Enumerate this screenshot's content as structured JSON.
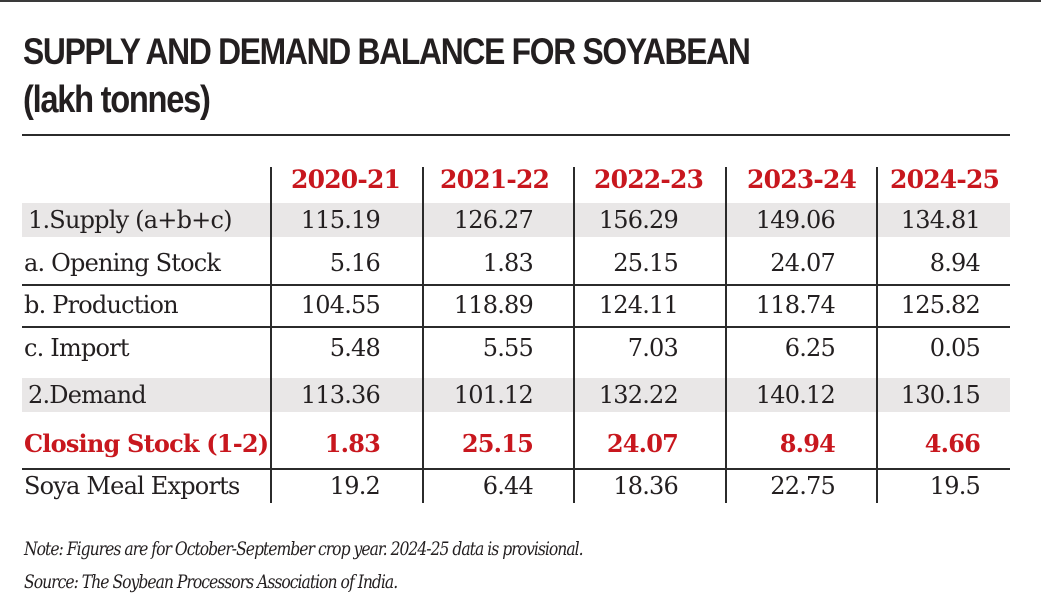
{
  "chart_data": {
    "type": "table",
    "title": "SUPPLY AND DEMAND BALANCE FOR SOYABEAN",
    "subtitle": "(lakh tonnes)",
    "columns": [
      "2020-21",
      "2021-22",
      "2022-23",
      "2023-24",
      "2024-25"
    ],
    "rows": [
      {
        "label": "1.Supply (a+b+c)",
        "values": [
          "115.19",
          "126.27",
          "156.29",
          "149.06",
          "134.81"
        ],
        "shaded": true,
        "highlight": false
      },
      {
        "label": "a. Opening Stock",
        "values": [
          "5.16",
          "1.83",
          "25.15",
          "24.07",
          "8.94"
        ],
        "shaded": false,
        "highlight": false
      },
      {
        "label": "b. Production",
        "values": [
          "104.55",
          "118.89",
          "124.11",
          "118.74",
          "125.82"
        ],
        "shaded": false,
        "highlight": false
      },
      {
        "label": "c. Import",
        "values": [
          "5.48",
          "5.55",
          "7.03",
          "6.25",
          "0.05"
        ],
        "shaded": false,
        "highlight": false
      },
      {
        "label": "2.Demand",
        "values": [
          "113.36",
          "101.12",
          "132.22",
          "140.12",
          "130.15"
        ],
        "shaded": true,
        "highlight": false
      },
      {
        "label": "Closing Stock (1-2)",
        "values": [
          "1.83",
          "25.15",
          "24.07",
          "8.94",
          "4.66"
        ],
        "shaded": false,
        "highlight": true
      },
      {
        "label": "Soya Meal Exports",
        "values": [
          "19.2",
          "6.44",
          "18.36",
          "22.75",
          "19.5"
        ],
        "shaded": false,
        "highlight": false
      }
    ],
    "note": "Note: Figures are for October-September crop year. 2024-25 data is provisional.",
    "source": "Source: The Soybean Processors Association of India."
  },
  "colors": {
    "accent_red": "#c8171e",
    "text": "#231f20",
    "shade": "#e9e7e7",
    "rule": "#2b2b2b"
  }
}
